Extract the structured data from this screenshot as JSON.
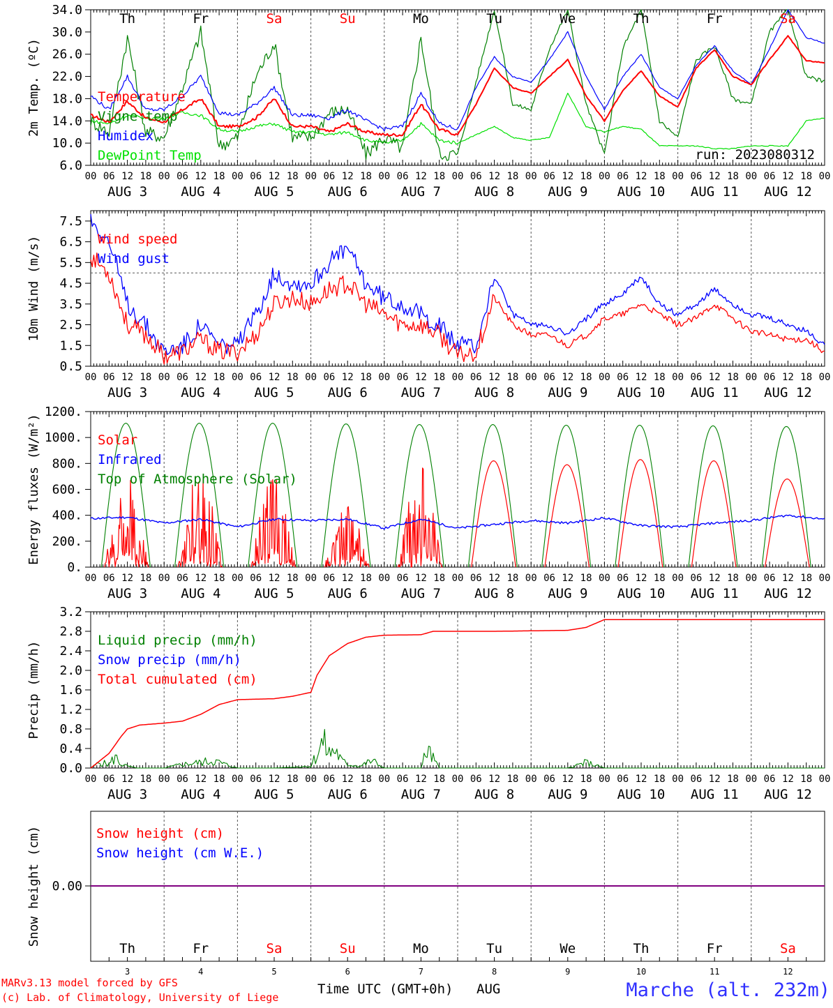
{
  "meta": {
    "ticks_hours": [
      "00",
      "06",
      "12",
      "18"
    ],
    "tick_end": "00",
    "footer_left_1": "MARv3.13 model forced by GFS",
    "footer_left_2": "(c) Lab. of Climatology, University of Liege",
    "footer_center": "Time UTC (GMT+0h)",
    "footer_month": "AUG",
    "footer_station": "Marche (alt. 232m)"
  },
  "days": {
    "weekday": [
      "Th",
      "Fr",
      "Sa",
      "Su",
      "Mo",
      "Tu",
      "We",
      "Th",
      "Fr",
      "Sa"
    ],
    "weekend": [
      false,
      false,
      true,
      true,
      false,
      false,
      false,
      false,
      false,
      true
    ],
    "date_labels": [
      "AUG  3",
      "AUG  4",
      "AUG  5",
      "AUG  6",
      "AUG  7",
      "AUG  8",
      "AUG  9",
      "AUG 10",
      "AUG 11",
      "AUG 12"
    ],
    "day_numbers": [
      "3",
      "4",
      "5",
      "6",
      "7",
      "8",
      "9",
      "10",
      "11",
      "12"
    ]
  },
  "colors": {
    "red": "#ff0000",
    "green": "#008000",
    "blue": "#0000ff",
    "lightgreen": "#00e000",
    "purple": "#800080",
    "station": "#3030ff"
  },
  "chart_data": [
    {
      "type": "line",
      "ylabel": "2m Temp. (ºC)",
      "ylim": [
        6,
        34
      ],
      "yticks": [
        "6.0",
        "10.0",
        "14.0",
        "18.0",
        "22.0",
        "26.0",
        "30.0",
        "34.0"
      ],
      "annotation": "run: 2023080312",
      "hours": [
        0,
        6,
        12,
        18,
        24,
        30,
        36,
        42,
        48,
        54,
        60,
        66,
        72,
        78,
        84,
        90,
        96,
        102,
        108,
        114,
        120,
        126,
        132,
        138,
        144,
        150,
        156,
        162,
        168,
        174,
        180,
        186,
        192,
        198,
        204,
        210,
        216,
        222,
        228,
        234,
        240
      ],
      "series": [
        {
          "name": "Temperature",
          "color": "red",
          "values": [
            15.0,
            13.8,
            17.5,
            14.5,
            13.8,
            16.0,
            18.0,
            13.0,
            13.0,
            14.5,
            18.0,
            13.0,
            13.0,
            12.0,
            13.5,
            12.0,
            11.5,
            11.5,
            17.0,
            12.5,
            11.5,
            17.0,
            23.5,
            20.0,
            19.0,
            22.0,
            25.0,
            18.5,
            14.0,
            19.5,
            23.0,
            18.5,
            16.5,
            23.5,
            26.8,
            22.0,
            20.5,
            25.0,
            29.3,
            24.8,
            24.5
          ]
        },
        {
          "name": "Vigne temp",
          "color": "green",
          "values": [
            14.0,
            12.0,
            29.0,
            12.0,
            11.0,
            20.0,
            30.0,
            9.5,
            11.0,
            22.0,
            28.0,
            11.0,
            11.0,
            15.5,
            16.0,
            8.0,
            11.0,
            9.0,
            29.0,
            8.0,
            8.0,
            21.0,
            34.0,
            17.0,
            16.0,
            27.0,
            34.0,
            17.0,
            8.0,
            27.0,
            34.0,
            14.0,
            11.0,
            25.0,
            27.5,
            18.0,
            17.0,
            30.0,
            34.0,
            22.0,
            21.0
          ]
        },
        {
          "name": "Humidex",
          "color": "blue",
          "values": [
            18.5,
            16.0,
            22.0,
            16.0,
            16.0,
            18.5,
            22.0,
            15.5,
            15.0,
            17.0,
            20.0,
            15.0,
            15.0,
            14.5,
            16.0,
            14.0,
            12.5,
            13.0,
            19.0,
            13.5,
            12.5,
            20.0,
            25.5,
            22.0,
            21.0,
            25.0,
            30.0,
            22.0,
            16.0,
            22.0,
            26.0,
            20.0,
            18.0,
            24.0,
            27.5,
            23.0,
            20.5,
            27.0,
            34.0,
            29.0,
            28.0
          ]
        },
        {
          "name": "DewPoint Temp",
          "color": "lightgreen",
          "values": [
            14.0,
            13.5,
            15.0,
            14.5,
            14.5,
            15.5,
            15.0,
            12.5,
            12.0,
            13.0,
            13.5,
            12.0,
            12.0,
            11.5,
            12.0,
            10.5,
            10.0,
            10.5,
            13.5,
            10.5,
            10.0,
            11.5,
            13.0,
            11.0,
            10.5,
            11.0,
            19.0,
            13.0,
            12.0,
            13.0,
            12.5,
            9.5,
            9.5,
            9.5,
            9.0,
            9.0,
            9.5,
            9.5,
            9.5,
            14.0,
            14.5
          ]
        }
      ]
    },
    {
      "type": "line",
      "ylabel": "10m Wind (m/s)",
      "ylim": [
        0.5,
        8.0
      ],
      "yticks": [
        "0.5",
        "1.5",
        "2.5",
        "3.5",
        "4.5",
        "5.5",
        "6.5",
        "7.5"
      ],
      "ref_line": 5.0,
      "hours": [
        0,
        6,
        12,
        18,
        24,
        30,
        36,
        42,
        48,
        54,
        60,
        66,
        72,
        78,
        84,
        90,
        96,
        102,
        108,
        114,
        120,
        126,
        132,
        138,
        144,
        150,
        156,
        162,
        168,
        174,
        180,
        186,
        192,
        198,
        204,
        210,
        216,
        222,
        228,
        234,
        240
      ],
      "series": [
        {
          "name": "Wind speed",
          "color": "red",
          "values": [
            5.8,
            5.0,
            2.5,
            2.0,
            1.0,
            1.2,
            1.8,
            1.2,
            1.2,
            2.0,
            3.5,
            3.8,
            3.5,
            4.2,
            4.5,
            3.5,
            3.0,
            2.5,
            2.5,
            2.0,
            1.0,
            1.2,
            3.8,
            2.5,
            2.0,
            2.0,
            1.5,
            2.0,
            2.8,
            3.0,
            3.5,
            3.0,
            2.5,
            2.8,
            3.5,
            2.8,
            2.2,
            2.0,
            1.8,
            1.8,
            1.2
          ]
        },
        {
          "name": "Wind gust",
          "color": "blue",
          "values": [
            7.6,
            6.5,
            3.5,
            2.5,
            1.2,
            1.5,
            2.5,
            1.5,
            1.5,
            3.0,
            5.0,
            4.5,
            4.5,
            5.5,
            6.2,
            4.5,
            3.8,
            3.5,
            3.0,
            2.5,
            1.5,
            1.5,
            4.8,
            3.0,
            2.5,
            2.5,
            2.0,
            2.8,
            3.5,
            4.0,
            4.8,
            3.5,
            3.0,
            3.5,
            4.2,
            3.5,
            3.0,
            2.8,
            2.5,
            2.2,
            1.5
          ]
        }
      ]
    },
    {
      "type": "line",
      "ylabel": "Energy fluxes (W/m²)",
      "ylim": [
        0,
        1200
      ],
      "yticks": [
        "0.",
        "200.",
        "400.",
        "600.",
        "800.",
        "1000.",
        "1200."
      ],
      "toa_peak": [
        1110,
        1110,
        1110,
        1105,
        1100,
        1100,
        1095,
        1095,
        1090,
        1085
      ],
      "solar_peak": [
        750,
        740,
        700,
        480,
        780,
        820,
        790,
        830,
        820,
        680
      ],
      "cloudy_days": [
        true,
        true,
        true,
        true,
        true,
        false,
        false,
        false,
        false,
        false
      ],
      "series": [
        {
          "name": "Solar",
          "color": "red"
        },
        {
          "name": "Infrared",
          "color": "blue",
          "hours": [
            0,
            12,
            24,
            36,
            48,
            60,
            72,
            84,
            96,
            108,
            120,
            132,
            144,
            156,
            168,
            180,
            192,
            204,
            216,
            228,
            240
          ],
          "values": [
            375,
            385,
            340,
            370,
            310,
            370,
            360,
            370,
            300,
            370,
            300,
            330,
            360,
            340,
            380,
            320,
            310,
            340,
            360,
            400,
            370
          ]
        },
        {
          "name": "Top of Atmosphere (Solar)",
          "color": "green"
        }
      ]
    },
    {
      "type": "area",
      "ylabel": "Precip (mm/h)",
      "ylim": [
        0,
        3.2
      ],
      "yticks": [
        "0.0",
        "0.4",
        "0.8",
        "1.2",
        "1.6",
        "2.0",
        "2.4",
        "2.8",
        "3.2"
      ],
      "series": [
        {
          "name": "Liquid precip (mm/h)",
          "color": "green",
          "hours": [
            0,
            3,
            6,
            8,
            10,
            12,
            15,
            18,
            24,
            30,
            36,
            40,
            44,
            48,
            60,
            72,
            74,
            76,
            78,
            80,
            82,
            84,
            88,
            92,
            96,
            108,
            110,
            114,
            120,
            132,
            156,
            162,
            168,
            240
          ],
          "values": [
            0,
            0.15,
            0.1,
            0.3,
            0.1,
            0.05,
            0,
            0,
            0,
            0.1,
            0.15,
            0.2,
            0.1,
            0,
            0,
            0.05,
            0.4,
            0.7,
            0.4,
            0.5,
            0.2,
            0.1,
            0.05,
            0.2,
            0,
            0,
            0.5,
            0,
            0,
            0,
            0,
            0.15,
            0,
            0
          ]
        },
        {
          "name": "Snow precip (mm/h)",
          "color": "blue",
          "hours": [
            0,
            240
          ],
          "values": [
            0,
            0
          ]
        },
        {
          "name": "Total cumulated (cm)",
          "color": "red",
          "hours": [
            0,
            6,
            10,
            12,
            16,
            24,
            30,
            36,
            42,
            48,
            60,
            66,
            72,
            74,
            78,
            84,
            90,
            96,
            108,
            112,
            120,
            132,
            156,
            162,
            168,
            240
          ],
          "values": [
            0,
            0.3,
            0.65,
            0.8,
            0.88,
            0.92,
            0.96,
            1.1,
            1.3,
            1.4,
            1.42,
            1.47,
            1.55,
            1.9,
            2.3,
            2.55,
            2.68,
            2.72,
            2.73,
            2.8,
            2.8,
            2.8,
            2.82,
            2.88,
            3.04,
            3.04
          ]
        }
      ]
    },
    {
      "type": "line",
      "ylabel": "Snow height (cm)",
      "yticks": [
        "0.00"
      ],
      "series": [
        {
          "name": "Snow height (cm)",
          "color": "red",
          "hours": [
            0,
            240
          ],
          "values": [
            0,
            0
          ]
        },
        {
          "name": "Snow height (cm W.E.)",
          "color": "blue",
          "hours": [
            0,
            240
          ],
          "values": [
            0,
            0
          ]
        }
      ]
    }
  ]
}
